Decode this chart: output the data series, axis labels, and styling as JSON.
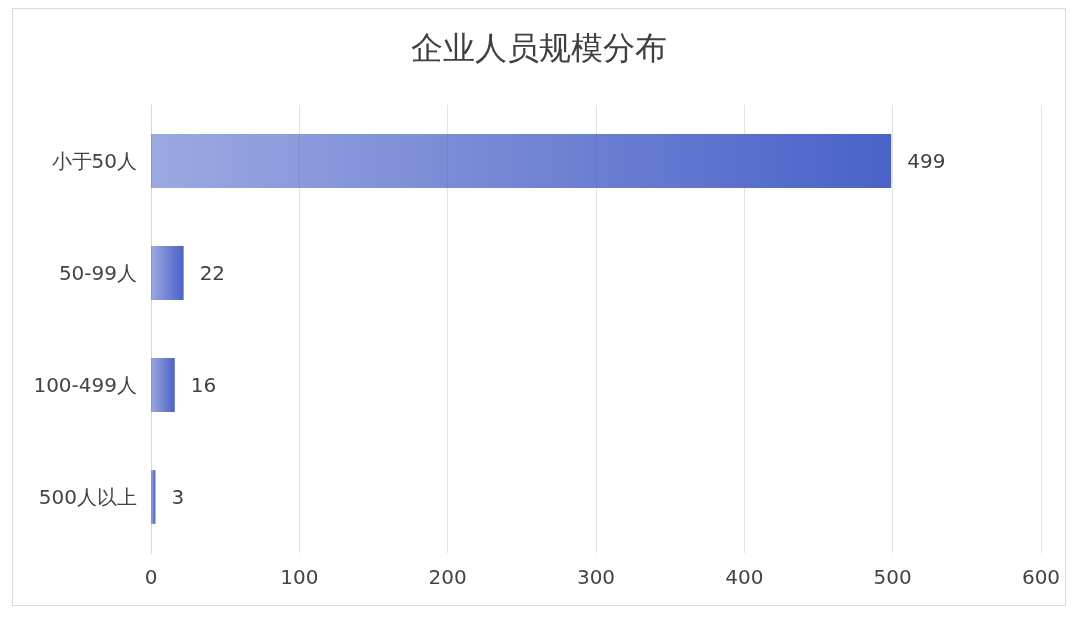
{
  "chart_data": {
    "type": "bar",
    "orientation": "horizontal",
    "title": "企业人员规模分布",
    "categories": [
      "小于50人",
      "50-99人",
      "100-499人",
      "500人以上"
    ],
    "values": [
      499,
      22,
      16,
      3
    ],
    "color": "#4a62c8",
    "xlim": [
      0,
      600
    ],
    "xticks": [
      0,
      100,
      200,
      300,
      400,
      500,
      600
    ],
    "grid": "x",
    "data_labels": true
  }
}
